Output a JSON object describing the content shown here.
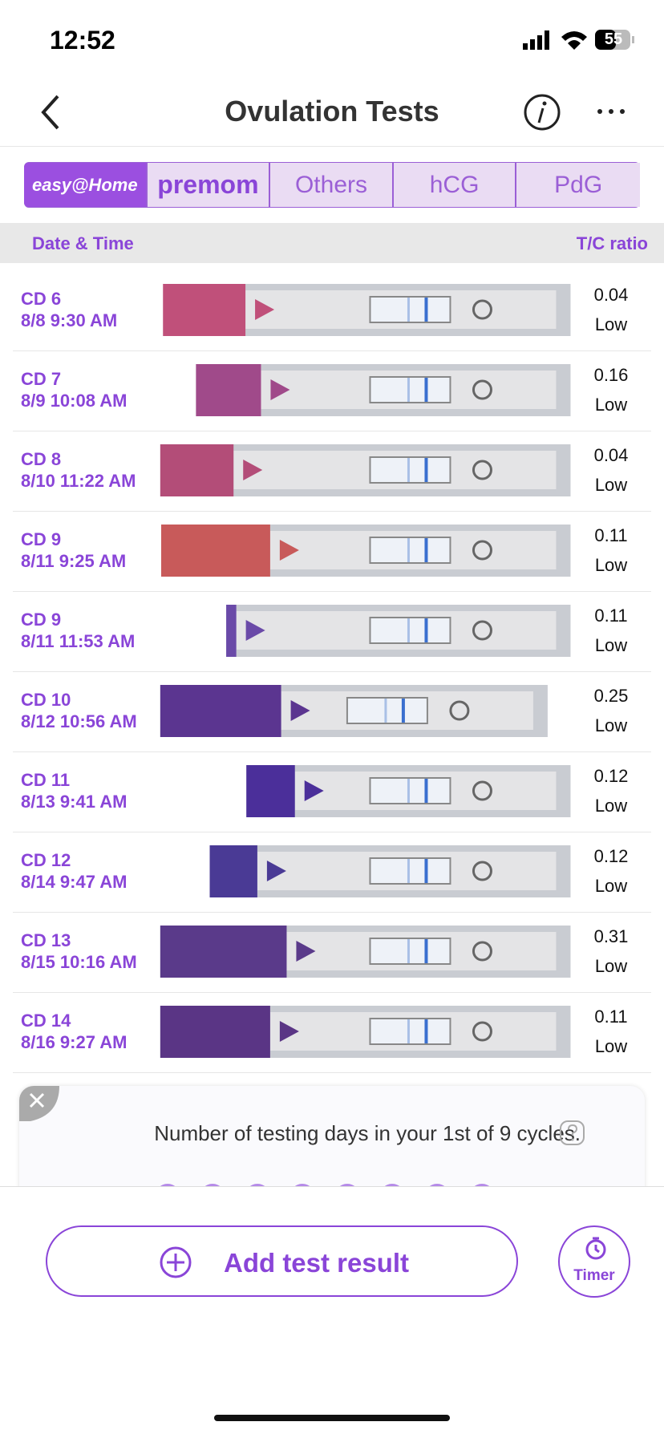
{
  "status_bar": {
    "time": "12:52",
    "battery": "55"
  },
  "header": {
    "title": "Ovulation Tests"
  },
  "tabs": [
    "easy@Home",
    "premom",
    "Others",
    "hCG",
    "PdG"
  ],
  "table": {
    "columns": [
      "Date & Time",
      "T/C ratio"
    ],
    "rows": [
      {
        "cycle_day": "CD 6",
        "datetime": "8/8 9:30 AM",
        "ratio": "0.04",
        "level": "Low"
      },
      {
        "cycle_day": "CD 7",
        "datetime": "8/9 10:08 AM",
        "ratio": "0.16",
        "level": "Low"
      },
      {
        "cycle_day": "CD 8",
        "datetime": "8/10 11:22 AM",
        "ratio": "0.04",
        "level": "Low"
      },
      {
        "cycle_day": "CD 9",
        "datetime": "8/11 9:25 AM",
        "ratio": "0.11",
        "level": "Low"
      },
      {
        "cycle_day": "CD 9",
        "datetime": "8/11 11:53 AM",
        "ratio": "0.11",
        "level": "Low"
      },
      {
        "cycle_day": "CD 10",
        "datetime": "8/12 10:56 AM",
        "ratio": "0.25",
        "level": "Low"
      },
      {
        "cycle_day": "CD 11",
        "datetime": "8/13 9:41 AM",
        "ratio": "0.12",
        "level": "Low"
      },
      {
        "cycle_day": "CD 12",
        "datetime": "8/14 9:47 AM",
        "ratio": "0.12",
        "level": "Low"
      },
      {
        "cycle_day": "CD 13",
        "datetime": "8/15 10:16 AM",
        "ratio": "0.31",
        "level": "Low"
      },
      {
        "cycle_day": "CD 14",
        "datetime": "8/16 9:27 AM",
        "ratio": "0.11",
        "level": "Low"
      }
    ]
  },
  "summary": {
    "text": "Number of testing days in your 1st of 9 cycles."
  },
  "actions": {
    "add": "Add test result",
    "timer": "Timer"
  }
}
